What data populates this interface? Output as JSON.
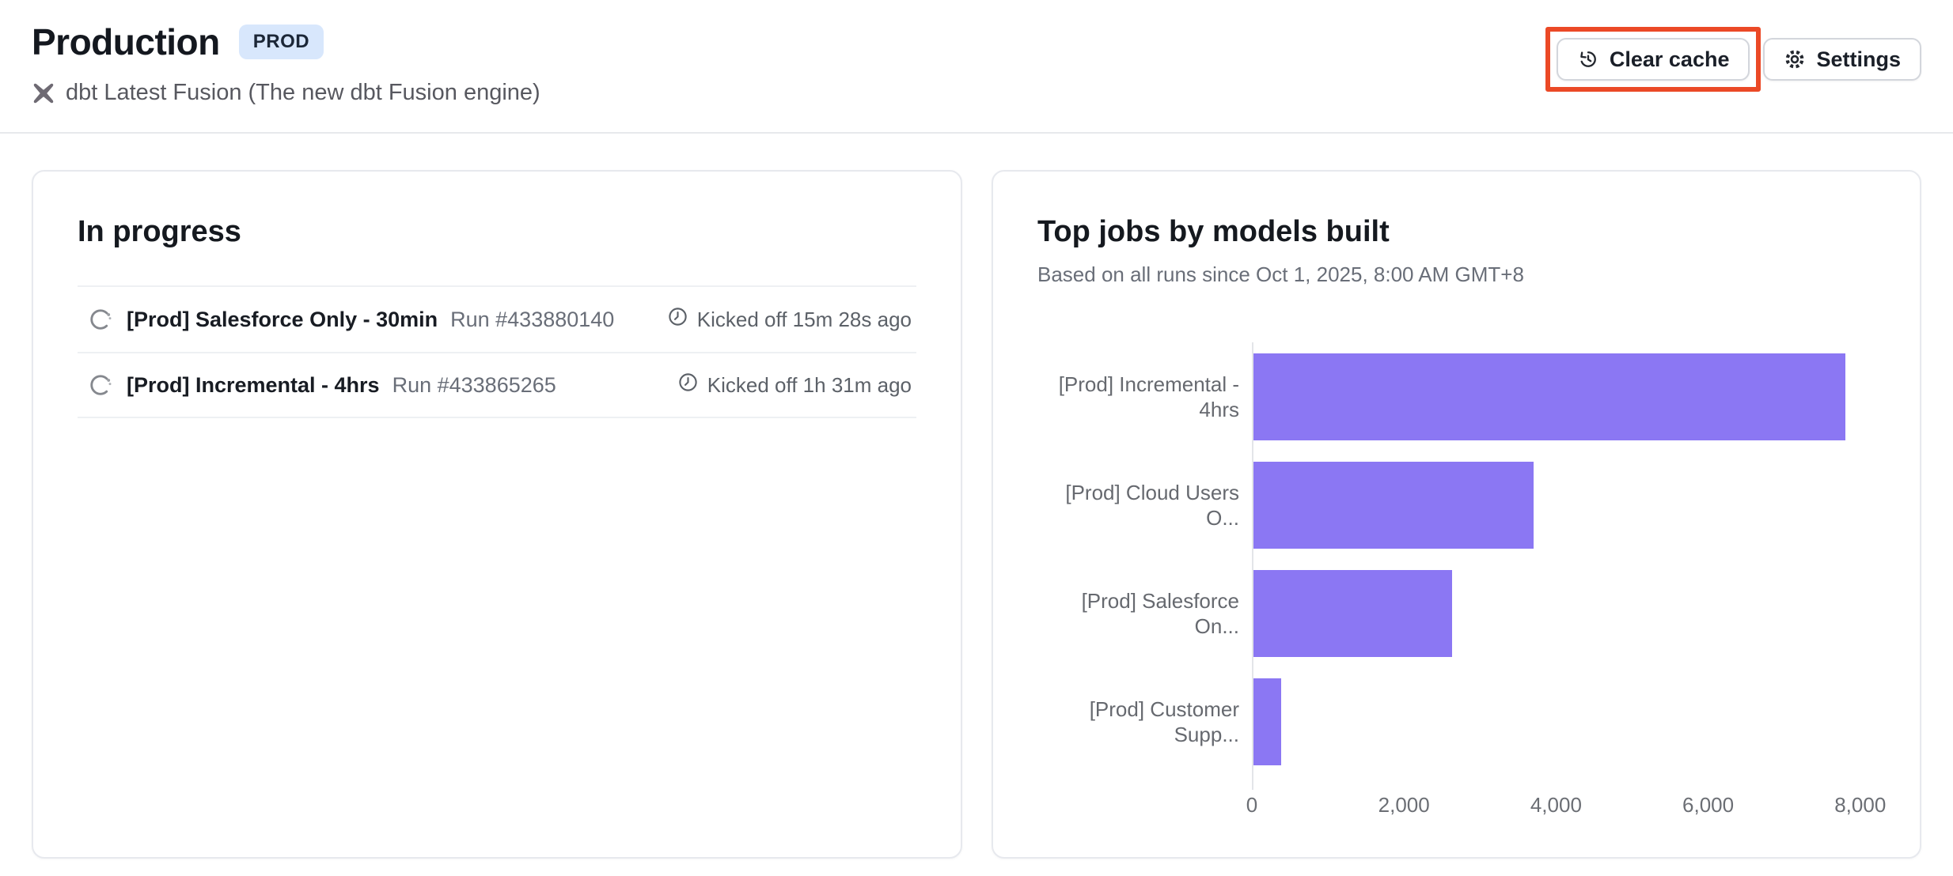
{
  "header": {
    "title": "Production",
    "badge": "PROD",
    "subtitle": "dbt Latest Fusion (The new dbt Fusion engine)",
    "buttons": {
      "clear_cache": "Clear cache",
      "settings": "Settings"
    }
  },
  "in_progress": {
    "title": "In progress",
    "runs": [
      {
        "name": "[Prod] Salesforce Only - 30min",
        "run": "Run #433880140",
        "kicked_off": "Kicked off 15m 28s ago"
      },
      {
        "name": "[Prod] Incremental - 4hrs",
        "run": "Run #433865265",
        "kicked_off": "Kicked off 1h 31m ago"
      }
    ]
  },
  "chart_card": {
    "title": "Top jobs by models built",
    "subtitle": "Based on all runs since Oct 1, 2025, 8:00 AM GMT+8"
  },
  "chart_data": {
    "type": "bar",
    "orientation": "horizontal",
    "title": "Top jobs by models built",
    "categories": [
      "[Prod] Incremental - 4hrs",
      "[Prod] Cloud Users O...",
      "[Prod] Salesforce On...",
      "[Prod] Customer Supp..."
    ],
    "values": [
      7800,
      3700,
      2630,
      390
    ],
    "xlim": [
      0,
      8200
    ],
    "xticks": [
      0,
      2000,
      4000,
      6000,
      8000
    ],
    "xtick_labels": [
      "0",
      "2,000",
      "4,000",
      "6,000",
      "8,000"
    ],
    "bar_color": "#8B77F3",
    "grid": false,
    "legend": "none"
  },
  "colors": {
    "annotation_highlight": "#EB4926",
    "badge_bg": "#D8E7FC",
    "badge_fg": "#1C2737",
    "bar": "#8B77F3"
  }
}
